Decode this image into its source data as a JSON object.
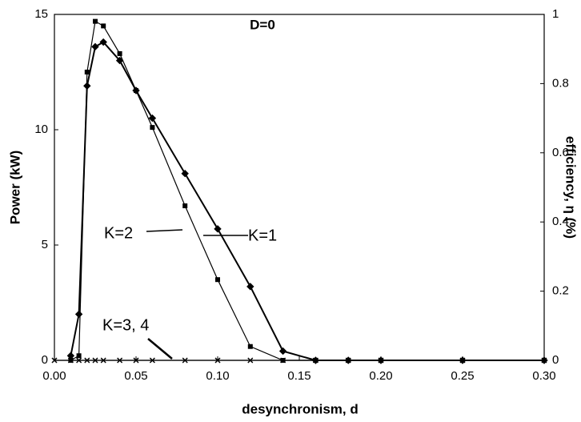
{
  "chart_data": {
    "type": "line",
    "xlabel": "desynchronism, d",
    "ylabel": "Power (kW)",
    "y2label": "efficiency, η (%)",
    "annotations": [
      "D=0",
      "K=2",
      "K=1",
      "K=3, 4"
    ],
    "xlim": [
      0,
      0.3
    ],
    "xticks": [
      {
        "value": 0,
        "label": "0.00"
      },
      {
        "value": 0.05,
        "label": "0.05"
      },
      {
        "value": 0.1,
        "label": "0.10"
      },
      {
        "value": 0.15,
        "label": "0.15"
      },
      {
        "value": 0.2,
        "label": "0.20"
      },
      {
        "value": 0.25,
        "label": "0.25"
      },
      {
        "value": 0.3,
        "label": "0.30"
      }
    ],
    "ylim": [
      0,
      15
    ],
    "yticks": [
      0,
      5,
      10,
      15
    ],
    "y2lim": [
      0,
      1
    ],
    "y2ticks": [
      0,
      0.2,
      0.4,
      0.6,
      0.8,
      1
    ],
    "series": [
      {
        "name": "K=1",
        "color": "#000000",
        "marker": "diamond",
        "x": [
          0.01,
          0.015,
          0.02,
          0.025,
          0.03,
          0.04,
          0.05,
          0.06,
          0.08,
          0.1,
          0.12,
          0.14,
          0.16,
          0.18,
          0.2,
          0.25,
          0.3
        ],
        "values": [
          0.2,
          2.0,
          11.9,
          13.6,
          13.8,
          13.0,
          11.7,
          10.5,
          8.1,
          5.7,
          3.2,
          0.4,
          0,
          0,
          0,
          0,
          0
        ]
      },
      {
        "name": "K=2",
        "color": "#000000",
        "marker": "square",
        "x": [
          0.01,
          0.015,
          0.02,
          0.025,
          0.03,
          0.04,
          0.05,
          0.06,
          0.08,
          0.1,
          0.12,
          0.14,
          0.16,
          0.18,
          0.2,
          0.25,
          0.3
        ],
        "values": [
          0,
          0.2,
          12.5,
          14.7,
          14.5,
          13.3,
          11.7,
          10.1,
          6.7,
          3.5,
          0.6,
          0,
          0,
          0,
          0,
          0,
          0
        ]
      },
      {
        "name": "K=3, 4",
        "color": "#000000",
        "marker": "x",
        "x": [
          0,
          0.01,
          0.015,
          0.02,
          0.025,
          0.03,
          0.04,
          0.05,
          0.06,
          0.08,
          0.1,
          0.12,
          0.14,
          0.16,
          0.18,
          0.2,
          0.25,
          0.3
        ],
        "values": [
          0,
          0,
          0,
          0,
          0,
          0,
          0,
          0,
          0,
          0,
          0,
          0,
          0,
          0,
          0,
          0,
          0,
          0
        ]
      }
    ]
  }
}
